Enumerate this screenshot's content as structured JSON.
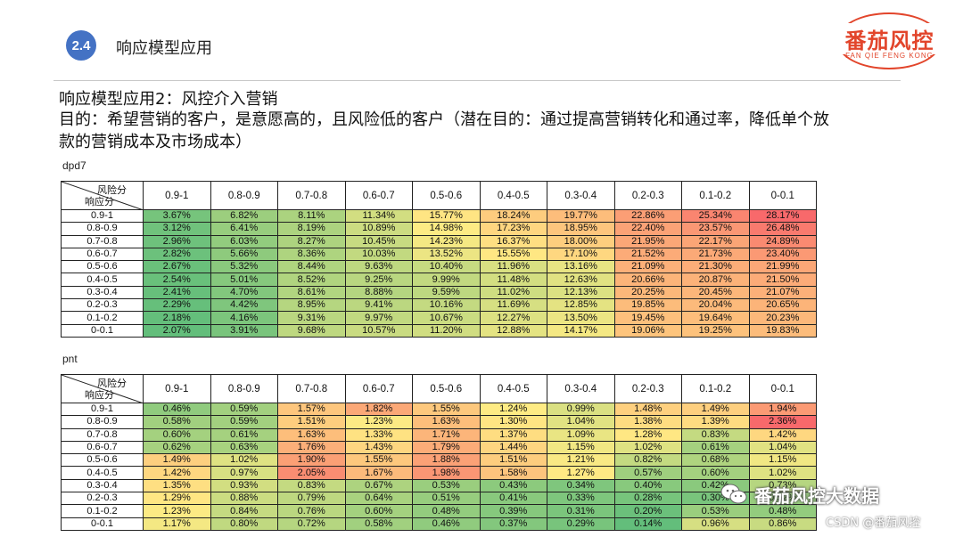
{
  "header": {
    "badge": "2.4",
    "section_title": "响应模型应用",
    "logo_main": "番茄风控",
    "logo_sub": "FAN QIE FENG KONG"
  },
  "subtitle": "响应模型应用2：风控介入营销",
  "purpose": "目的：希望营销的客户，是意愿高的，且风险低的客户（潜在目的：通过提高营销转化和通过率，降低单个放款的营销成本及市场成本）",
  "corner": {
    "top": "风险分",
    "bottom": "响应分"
  },
  "columns": [
    "0.9-1",
    "0.8-0.9",
    "0.7-0.8",
    "0.6-0.7",
    "0.5-0.6",
    "0.4-0.5",
    "0.3-0.4",
    "0.2-0.3",
    "0.1-0.2",
    "0-0.1"
  ],
  "rows": [
    "0.9-1",
    "0.8-0.9",
    "0.7-0.8",
    "0.6-0.7",
    "0.5-0.6",
    "0.4-0.5",
    "0.3-0.4",
    "0.2-0.3",
    "0.1-0.2",
    "0-0.1"
  ],
  "tables": [
    {
      "label": "dpd7",
      "values": [
        [
          "3.67%",
          "6.82%",
          "8.11%",
          "11.34%",
          "15.77%",
          "18.24%",
          "19.77%",
          "22.86%",
          "25.34%",
          "28.17%"
        ],
        [
          "3.12%",
          "6.41%",
          "8.19%",
          "10.89%",
          "14.98%",
          "17.23%",
          "18.95%",
          "22.40%",
          "23.57%",
          "26.48%"
        ],
        [
          "2.96%",
          "6.03%",
          "8.27%",
          "10.45%",
          "14.23%",
          "16.37%",
          "18.00%",
          "21.95%",
          "22.17%",
          "24.89%"
        ],
        [
          "2.82%",
          "5.66%",
          "8.36%",
          "10.03%",
          "13.52%",
          "15.55%",
          "17.10%",
          "21.52%",
          "21.73%",
          "23.40%"
        ],
        [
          "2.67%",
          "5.32%",
          "8.44%",
          "9.63%",
          "10.40%",
          "11.96%",
          "13.16%",
          "21.09%",
          "21.30%",
          "21.99%"
        ],
        [
          "2.54%",
          "5.01%",
          "8.52%",
          "9.25%",
          "9.99%",
          "11.48%",
          "12.63%",
          "20.66%",
          "20.87%",
          "21.50%"
        ],
        [
          "2.41%",
          "4.70%",
          "8.61%",
          "8.88%",
          "9.59%",
          "11.02%",
          "12.13%",
          "20.25%",
          "20.45%",
          "21.07%"
        ],
        [
          "2.29%",
          "4.42%",
          "8.95%",
          "9.41%",
          "10.16%",
          "11.69%",
          "12.85%",
          "19.85%",
          "20.04%",
          "20.65%"
        ],
        [
          "2.18%",
          "4.16%",
          "9.31%",
          "9.97%",
          "10.67%",
          "12.27%",
          "13.50%",
          "19.45%",
          "19.64%",
          "20.23%"
        ],
        [
          "2.07%",
          "3.91%",
          "9.68%",
          "10.57%",
          "11.20%",
          "12.88%",
          "14.17%",
          "19.06%",
          "19.25%",
          "19.83%"
        ]
      ]
    },
    {
      "label": "pnt",
      "values": [
        [
          "0.46%",
          "0.59%",
          "1.57%",
          "1.82%",
          "1.55%",
          "1.24%",
          "0.99%",
          "1.48%",
          "1.49%",
          "1.94%"
        ],
        [
          "0.58%",
          "0.59%",
          "1.51%",
          "1.23%",
          "1.63%",
          "1.30%",
          "1.04%",
          "1.38%",
          "1.39%",
          "2.36%"
        ],
        [
          "0.60%",
          "0.61%",
          "1.63%",
          "1.33%",
          "1.71%",
          "1.37%",
          "1.09%",
          "1.28%",
          "0.83%",
          "1.42%"
        ],
        [
          "0.62%",
          "0.63%",
          "1.76%",
          "1.43%",
          "1.79%",
          "1.44%",
          "1.15%",
          "1.02%",
          "0.61%",
          "1.04%"
        ],
        [
          "1.49%",
          "1.02%",
          "1.90%",
          "1.55%",
          "1.88%",
          "1.51%",
          "1.21%",
          "0.82%",
          "0.68%",
          "1.15%"
        ],
        [
          "1.42%",
          "0.97%",
          "2.05%",
          "1.67%",
          "1.98%",
          "1.58%",
          "1.27%",
          "0.57%",
          "0.60%",
          "1.02%"
        ],
        [
          "1.35%",
          "0.93%",
          "0.83%",
          "0.67%",
          "0.53%",
          "0.43%",
          "0.34%",
          "0.40%",
          "0.42%",
          "0.73%"
        ],
        [
          "1.29%",
          "0.88%",
          "0.79%",
          "0.64%",
          "0.51%",
          "0.41%",
          "0.33%",
          "0.28%",
          "0.30%",
          "0.52%"
        ],
        [
          "1.23%",
          "0.84%",
          "0.76%",
          "0.60%",
          "0.48%",
          "0.39%",
          "0.31%",
          "0.20%",
          "0.53%",
          "0.48%"
        ],
        [
          "1.17%",
          "0.80%",
          "0.72%",
          "0.58%",
          "0.46%",
          "0.37%",
          "0.29%",
          "0.14%",
          "0.96%",
          "0.86%"
        ]
      ]
    }
  ],
  "colors": {
    "low": "#63be7b",
    "mid": "#ffeb84",
    "high": "#f8696b"
  },
  "watermark": {
    "wechat": "番茄风控大数据",
    "csdn": "CSDN @番茄风控"
  }
}
